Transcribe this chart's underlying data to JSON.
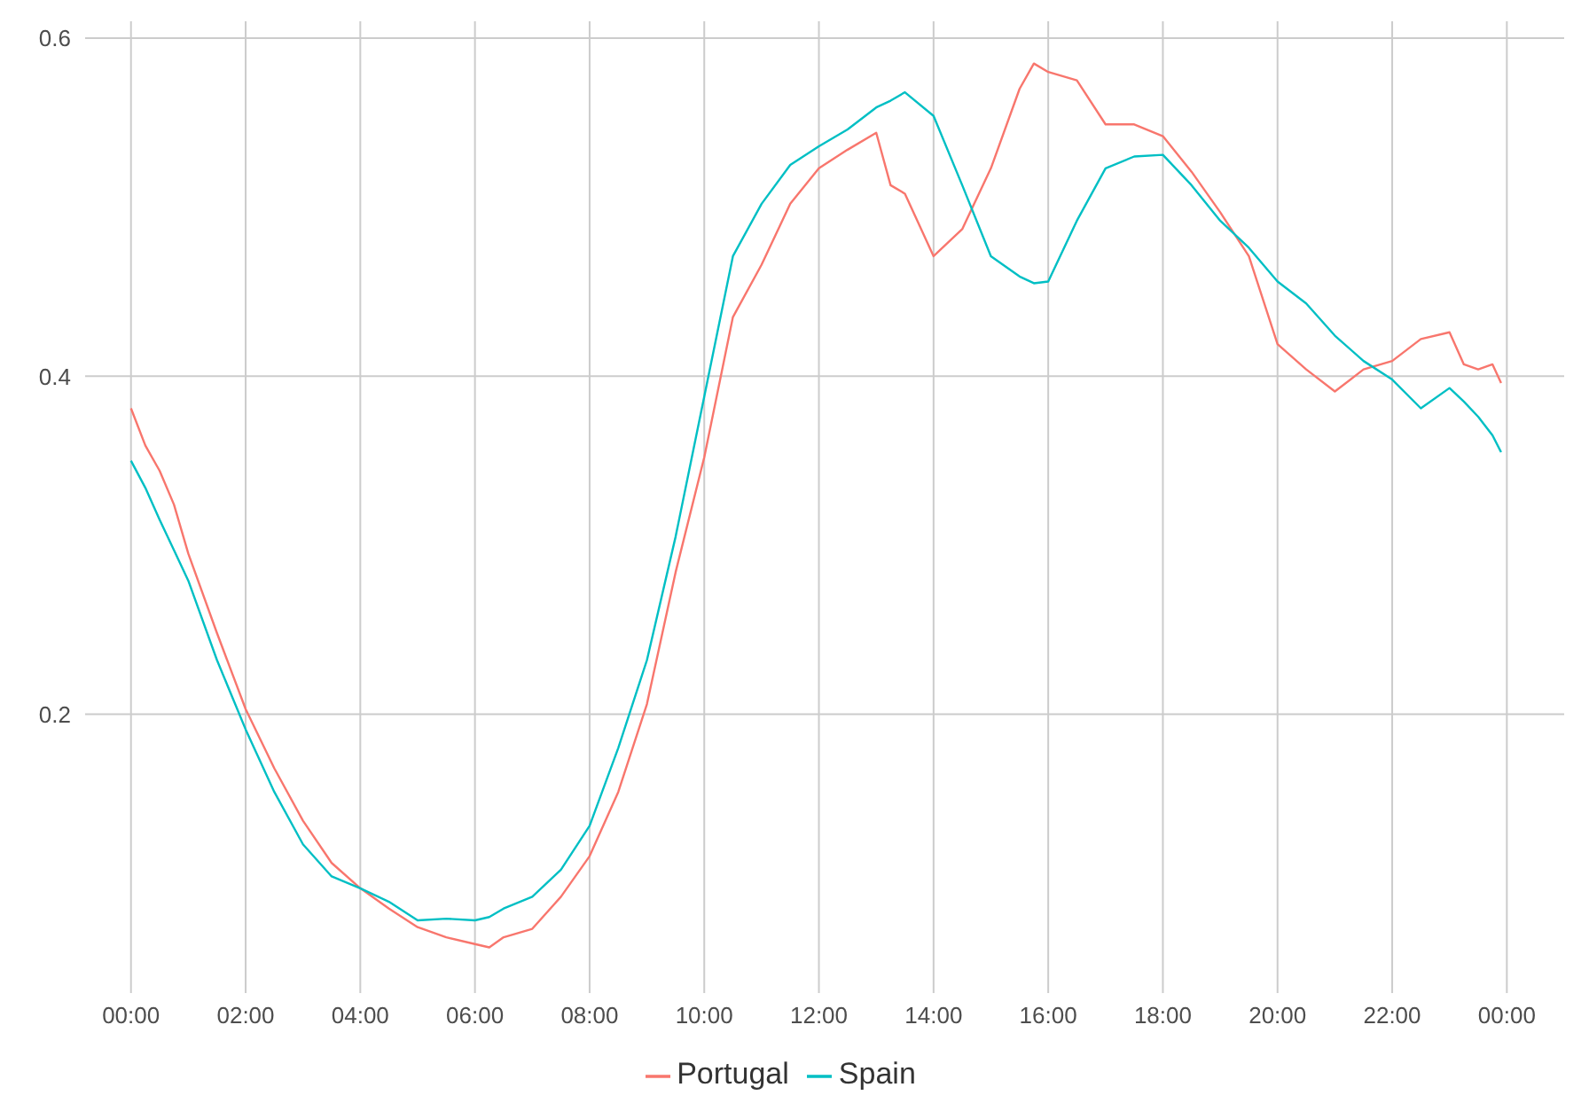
{
  "chart_data": {
    "type": "line",
    "x": [
      0,
      0.25,
      0.5,
      0.75,
      1,
      1.5,
      2,
      2.5,
      3,
      3.5,
      4,
      4.5,
      5,
      5.5,
      6,
      6.25,
      6.5,
      7,
      7.5,
      8,
      8.5,
      9,
      9.5,
      10,
      10.5,
      11,
      11.5,
      12,
      12.5,
      13,
      13.25,
      13.5,
      14,
      14.5,
      15,
      15.5,
      15.75,
      16,
      16.5,
      17,
      17.5,
      18,
      18.5,
      19,
      19.5,
      20,
      20.5,
      21,
      21.5,
      22,
      22.5,
      23,
      23.25,
      23.5,
      23.75,
      23.9
    ],
    "series": [
      {
        "name": "Portugal",
        "color": "#f8766d",
        "values": [
          0.381,
          0.359,
          0.344,
          0.324,
          0.295,
          0.248,
          0.203,
          0.168,
          0.137,
          0.112,
          0.097,
          0.085,
          0.074,
          0.068,
          0.064,
          0.062,
          0.068,
          0.073,
          0.092,
          0.116,
          0.154,
          0.206,
          0.284,
          0.352,
          0.435,
          0.466,
          0.502,
          0.523,
          0.534,
          0.544,
          0.513,
          0.508,
          0.471,
          0.487,
          0.523,
          0.57,
          0.585,
          0.58,
          0.575,
          0.549,
          0.549,
          0.542,
          0.521,
          0.497,
          0.471,
          0.419,
          0.404,
          0.391,
          0.404,
          0.409,
          0.422,
          0.426,
          0.407,
          0.404,
          0.407,
          0.396
        ]
      },
      {
        "name": "Spain",
        "color": "#00bfc4",
        "values": [
          0.35,
          0.334,
          0.315,
          0.297,
          0.279,
          0.232,
          0.191,
          0.154,
          0.123,
          0.104,
          0.097,
          0.089,
          0.078,
          0.079,
          0.078,
          0.08,
          0.085,
          0.092,
          0.108,
          0.134,
          0.18,
          0.232,
          0.305,
          0.388,
          0.471,
          0.502,
          0.525,
          0.536,
          0.546,
          0.559,
          0.563,
          0.568,
          0.554,
          0.513,
          0.471,
          0.459,
          0.455,
          0.456,
          0.492,
          0.523,
          0.53,
          0.531,
          0.513,
          0.492,
          0.476,
          0.456,
          0.443,
          0.424,
          0.409,
          0.398,
          0.381,
          0.393,
          0.385,
          0.376,
          0.365,
          0.355
        ]
      }
    ],
    "xlim": [
      -0.8,
      25
    ],
    "xticks": [
      {
        "value": 0,
        "label": "00:00"
      },
      {
        "value": 2,
        "label": "02:00"
      },
      {
        "value": 4,
        "label": "04:00"
      },
      {
        "value": 6,
        "label": "06:00"
      },
      {
        "value": 8,
        "label": "08:00"
      },
      {
        "value": 10,
        "label": "10:00"
      },
      {
        "value": 12,
        "label": "12:00"
      },
      {
        "value": 14,
        "label": "14:00"
      },
      {
        "value": 16,
        "label": "16:00"
      },
      {
        "value": 18,
        "label": "18:00"
      },
      {
        "value": 20,
        "label": "20:00"
      },
      {
        "value": 22,
        "label": "22:00"
      },
      {
        "value": 24,
        "label": "00:00"
      }
    ],
    "ylim": [
      0.035,
      0.61
    ],
    "yticks": [
      0.2,
      0.4,
      0.6
    ],
    "grid": true,
    "legend": "bottom",
    "marker": "none",
    "line_style": "solid"
  }
}
